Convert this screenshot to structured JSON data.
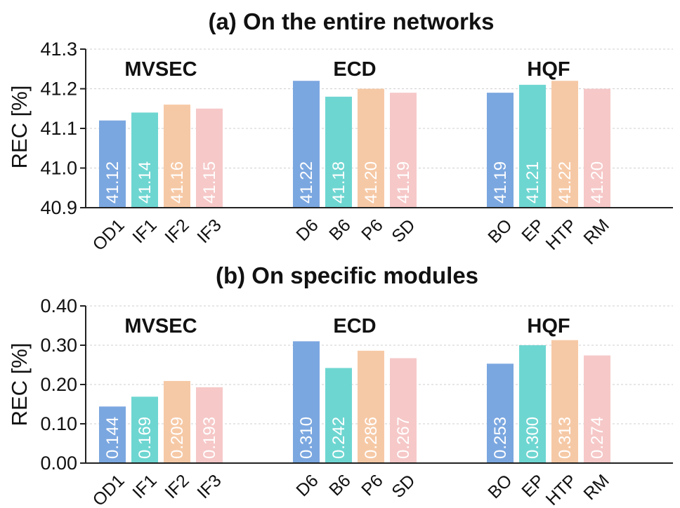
{
  "colors": {
    "blue": "#7ba7e0",
    "teal": "#6ed6d1",
    "peach": "#f6c9a6",
    "pink": "#f6c8c8"
  },
  "chart_data": [
    {
      "type": "bar",
      "title": "(a) On the entire networks",
      "ylabel": "REC [%]",
      "ylim": [
        40.9,
        41.3
      ],
      "yticks": [
        "40.9",
        "41.0",
        "41.1",
        "41.2",
        "41.3"
      ],
      "grid": true,
      "groups": [
        {
          "name": "MVSEC",
          "bars": [
            {
              "category": "OD1",
              "value": 41.12,
              "label": "41.12",
              "color": "blue"
            },
            {
              "category": "IF1",
              "value": 41.14,
              "label": "41.14",
              "color": "teal"
            },
            {
              "category": "IF2",
              "value": 41.16,
              "label": "41.16",
              "color": "peach"
            },
            {
              "category": "IF3",
              "value": 41.15,
              "label": "41.15",
              "color": "pink"
            }
          ]
        },
        {
          "name": "ECD",
          "bars": [
            {
              "category": "D6",
              "value": 41.22,
              "label": "41.22",
              "color": "blue"
            },
            {
              "category": "B6",
              "value": 41.18,
              "label": "41.18",
              "color": "teal"
            },
            {
              "category": "P6",
              "value": 41.2,
              "label": "41.20",
              "color": "peach"
            },
            {
              "category": "SD",
              "value": 41.19,
              "label": "41.19",
              "color": "pink"
            }
          ]
        },
        {
          "name": "HQF",
          "bars": [
            {
              "category": "BO",
              "value": 41.19,
              "label": "41.19",
              "color": "blue"
            },
            {
              "category": "EP",
              "value": 41.21,
              "label": "41.21",
              "color": "teal"
            },
            {
              "category": "HTP",
              "value": 41.22,
              "label": "41.22",
              "color": "peach"
            },
            {
              "category": "RM",
              "value": 41.2,
              "label": "41.20",
              "color": "pink"
            }
          ]
        }
      ]
    },
    {
      "type": "bar",
      "title": "(b) On specific modules",
      "ylabel": "REC [%]",
      "ylim": [
        0.0,
        0.4
      ],
      "yticks": [
        "0.00",
        "0.10",
        "0.20",
        "0.30",
        "0.40"
      ],
      "grid": true,
      "groups": [
        {
          "name": "MVSEC",
          "bars": [
            {
              "category": "OD1",
              "value": 0.144,
              "label": "0.144",
              "color": "blue"
            },
            {
              "category": "IF1",
              "value": 0.169,
              "label": "0.169",
              "color": "teal"
            },
            {
              "category": "IF2",
              "value": 0.209,
              "label": "0.209",
              "color": "peach"
            },
            {
              "category": "IF3",
              "value": 0.193,
              "label": "0.193",
              "color": "pink"
            }
          ]
        },
        {
          "name": "ECD",
          "bars": [
            {
              "category": "D6",
              "value": 0.31,
              "label": "0.310",
              "color": "blue"
            },
            {
              "category": "B6",
              "value": 0.242,
              "label": "0.242",
              "color": "teal"
            },
            {
              "category": "P6",
              "value": 0.286,
              "label": "0.286",
              "color": "peach"
            },
            {
              "category": "SD",
              "value": 0.267,
              "label": "0.267",
              "color": "pink"
            }
          ]
        },
        {
          "name": "HQF",
          "bars": [
            {
              "category": "BO",
              "value": 0.253,
              "label": "0.253",
              "color": "blue"
            },
            {
              "category": "EP",
              "value": 0.3,
              "label": "0.300",
              "color": "teal"
            },
            {
              "category": "HTP",
              "value": 0.313,
              "label": "0.313",
              "color": "peach"
            },
            {
              "category": "RM",
              "value": 0.274,
              "label": "0.274",
              "color": "pink"
            }
          ]
        }
      ]
    }
  ]
}
